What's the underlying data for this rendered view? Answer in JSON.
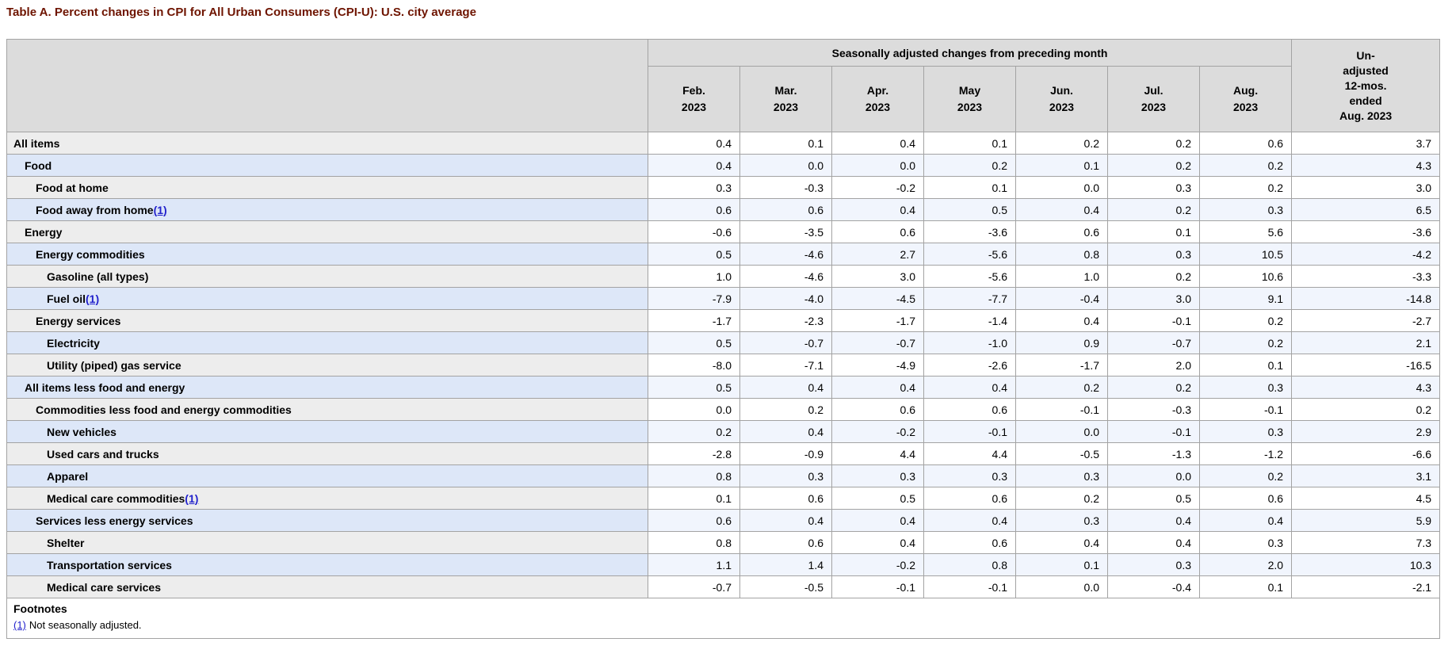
{
  "title": "Table A. Percent changes in CPI for All Urban Consumers (CPI-U): U.S. city average",
  "table": {
    "group_header": "Seasonally adjusted changes from preceding month",
    "month_columns": [
      {
        "month": "Feb.",
        "year": "2023"
      },
      {
        "month": "Mar.",
        "year": "2023"
      },
      {
        "month": "Apr.",
        "year": "2023"
      },
      {
        "month": "May",
        "year": "2023"
      },
      {
        "month": "Jun.",
        "year": "2023"
      },
      {
        "month": "Jul.",
        "year": "2023"
      },
      {
        "month": "Aug.",
        "year": "2023"
      }
    ],
    "unadjusted_header_lines": [
      "Un-",
      "adjusted",
      "12-mos.",
      "ended",
      "Aug. 2023"
    ],
    "rows": [
      {
        "label": "All items",
        "indent": 0,
        "footnote_marker": "",
        "monthly": [
          "0.4",
          "0.1",
          "0.4",
          "0.1",
          "0.2",
          "0.2",
          "0.6"
        ],
        "twelve_month": "3.7"
      },
      {
        "label": "Food",
        "indent": 1,
        "footnote_marker": "",
        "monthly": [
          "0.4",
          "0.0",
          "0.0",
          "0.2",
          "0.1",
          "0.2",
          "0.2"
        ],
        "twelve_month": "4.3"
      },
      {
        "label": "Food at home",
        "indent": 2,
        "footnote_marker": "",
        "monthly": [
          "0.3",
          "-0.3",
          "-0.2",
          "0.1",
          "0.0",
          "0.3",
          "0.2"
        ],
        "twelve_month": "3.0"
      },
      {
        "label": "Food away from home",
        "indent": 2,
        "footnote_marker": "(1)",
        "monthly": [
          "0.6",
          "0.6",
          "0.4",
          "0.5",
          "0.4",
          "0.2",
          "0.3"
        ],
        "twelve_month": "6.5"
      },
      {
        "label": "Energy",
        "indent": 1,
        "footnote_marker": "",
        "monthly": [
          "-0.6",
          "-3.5",
          "0.6",
          "-3.6",
          "0.6",
          "0.1",
          "5.6"
        ],
        "twelve_month": "-3.6"
      },
      {
        "label": "Energy commodities",
        "indent": 2,
        "footnote_marker": "",
        "monthly": [
          "0.5",
          "-4.6",
          "2.7",
          "-5.6",
          "0.8",
          "0.3",
          "10.5"
        ],
        "twelve_month": "-4.2"
      },
      {
        "label": "Gasoline (all types)",
        "indent": 3,
        "footnote_marker": "",
        "monthly": [
          "1.0",
          "-4.6",
          "3.0",
          "-5.6",
          "1.0",
          "0.2",
          "10.6"
        ],
        "twelve_month": "-3.3"
      },
      {
        "label": "Fuel oil",
        "indent": 3,
        "footnote_marker": "(1)",
        "monthly": [
          "-7.9",
          "-4.0",
          "-4.5",
          "-7.7",
          "-0.4",
          "3.0",
          "9.1"
        ],
        "twelve_month": "-14.8"
      },
      {
        "label": "Energy services",
        "indent": 2,
        "footnote_marker": "",
        "monthly": [
          "-1.7",
          "-2.3",
          "-1.7",
          "-1.4",
          "0.4",
          "-0.1",
          "0.2"
        ],
        "twelve_month": "-2.7"
      },
      {
        "label": "Electricity",
        "indent": 3,
        "footnote_marker": "",
        "monthly": [
          "0.5",
          "-0.7",
          "-0.7",
          "-1.0",
          "0.9",
          "-0.7",
          "0.2"
        ],
        "twelve_month": "2.1"
      },
      {
        "label": "Utility (piped) gas service",
        "indent": 3,
        "footnote_marker": "",
        "monthly": [
          "-8.0",
          "-7.1",
          "-4.9",
          "-2.6",
          "-1.7",
          "2.0",
          "0.1"
        ],
        "twelve_month": "-16.5"
      },
      {
        "label": "All items less food and energy",
        "indent": 1,
        "footnote_marker": "",
        "monthly": [
          "0.5",
          "0.4",
          "0.4",
          "0.4",
          "0.2",
          "0.2",
          "0.3"
        ],
        "twelve_month": "4.3"
      },
      {
        "label": "Commodities less food and energy commodities",
        "indent": 2,
        "footnote_marker": "",
        "monthly": [
          "0.0",
          "0.2",
          "0.6",
          "0.6",
          "-0.1",
          "-0.3",
          "-0.1"
        ],
        "twelve_month": "0.2"
      },
      {
        "label": "New vehicles",
        "indent": 3,
        "footnote_marker": "",
        "monthly": [
          "0.2",
          "0.4",
          "-0.2",
          "-0.1",
          "0.0",
          "-0.1",
          "0.3"
        ],
        "twelve_month": "2.9"
      },
      {
        "label": "Used cars and trucks",
        "indent": 3,
        "footnote_marker": "",
        "monthly": [
          "-2.8",
          "-0.9",
          "4.4",
          "4.4",
          "-0.5",
          "-1.3",
          "-1.2"
        ],
        "twelve_month": "-6.6"
      },
      {
        "label": "Apparel",
        "indent": 3,
        "footnote_marker": "",
        "monthly": [
          "0.8",
          "0.3",
          "0.3",
          "0.3",
          "0.3",
          "0.0",
          "0.2"
        ],
        "twelve_month": "3.1"
      },
      {
        "label": "Medical care commodities",
        "indent": 3,
        "footnote_marker": "(1)",
        "monthly": [
          "0.1",
          "0.6",
          "0.5",
          "0.6",
          "0.2",
          "0.5",
          "0.6"
        ],
        "twelve_month": "4.5"
      },
      {
        "label": "Services less energy services",
        "indent": 2,
        "footnote_marker": "",
        "monthly": [
          "0.6",
          "0.4",
          "0.4",
          "0.4",
          "0.3",
          "0.4",
          "0.4"
        ],
        "twelve_month": "5.9"
      },
      {
        "label": "Shelter",
        "indent": 3,
        "footnote_marker": "",
        "monthly": [
          "0.8",
          "0.6",
          "0.4",
          "0.6",
          "0.4",
          "0.4",
          "0.3"
        ],
        "twelve_month": "7.3"
      },
      {
        "label": "Transportation services",
        "indent": 3,
        "footnote_marker": "",
        "monthly": [
          "1.1",
          "1.4",
          "-0.2",
          "0.8",
          "0.1",
          "0.3",
          "2.0"
        ],
        "twelve_month": "10.3"
      },
      {
        "label": "Medical care services",
        "indent": 3,
        "footnote_marker": "",
        "monthly": [
          "-0.7",
          "-0.5",
          "-0.1",
          "-0.1",
          "0.0",
          "-0.4",
          "0.1"
        ],
        "twelve_month": "-2.1"
      }
    ],
    "footnotes": {
      "heading": "Footnotes",
      "items": [
        {
          "marker": "(1)",
          "text": "Not seasonally adjusted."
        }
      ]
    }
  },
  "colors": {
    "title_text": "#6e1400",
    "header_bg": "#dcdcdc",
    "row_label_gray": "#ededed",
    "row_label_blue": "#dde7f8",
    "row_data_blue": "#f1f5fd",
    "row_data_white": "#ffffff",
    "border": "#a3a3a3",
    "link_blue": "#2222cc"
  }
}
